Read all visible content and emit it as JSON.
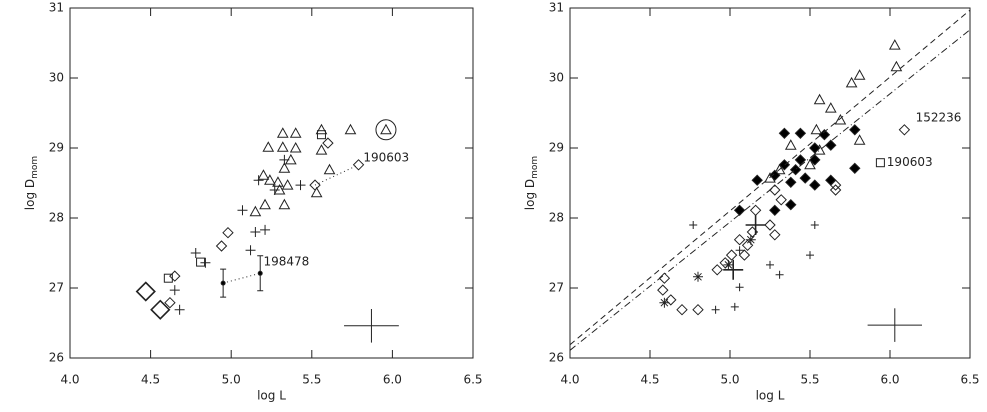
{
  "chart_data": [
    {
      "type": "scatter",
      "x_label": "log L",
      "y_label": "log D",
      "y_label_sub": "mom",
      "xlim": [
        4.0,
        6.5
      ],
      "ylim": [
        26,
        31
      ],
      "xticks": [
        {
          "value": 4.0,
          "label": "4.0"
        },
        4.5,
        {
          "value": 5.0,
          "label": "5.0"
        },
        5.5,
        {
          "value": 6.0,
          "label": "6.0"
        },
        6.5
      ],
      "yticks": [
        26,
        27,
        28,
        29,
        30,
        31
      ],
      "series": [
        {
          "marker": "triangle",
          "size": 5,
          "x": [
            5.32,
            5.4,
            5.23,
            5.32,
            5.4,
            5.2,
            5.24,
            5.29,
            5.33,
            5.37,
            5.3,
            5.35,
            5.21,
            5.33,
            5.15,
            5.56,
            5.74,
            5.61,
            5.53,
            5.56
          ],
          "y": [
            29.21,
            29.21,
            29.01,
            29.01,
            29.0,
            28.61,
            28.54,
            28.51,
            28.71,
            28.83,
            28.4,
            28.47,
            28.19,
            28.19,
            28.09,
            29.26,
            29.26,
            28.69,
            28.36,
            28.97
          ]
        },
        {
          "marker": "plus",
          "size": 5,
          "x": [
            5.07,
            5.15,
            5.21,
            4.78,
            4.84,
            5.12,
            4.65,
            4.68,
            5.17,
            5.27,
            5.43,
            5.33
          ],
          "y": [
            28.11,
            27.8,
            27.83,
            27.5,
            27.36,
            27.54,
            26.97,
            26.69,
            28.54,
            28.4,
            28.47,
            28.83
          ]
        },
        {
          "marker": "diamond",
          "size": 5,
          "x": [
            5.6,
            5.79,
            5.52,
            4.98,
            4.65,
            4.62,
            4.94
          ],
          "y": [
            29.07,
            28.76,
            28.47,
            27.79,
            27.17,
            26.79,
            27.6
          ]
        },
        {
          "marker": "diamond",
          "size": 9,
          "x": [
            4.47,
            4.56
          ],
          "y": [
            26.95,
            26.69
          ]
        },
        {
          "marker": "square",
          "size": 4,
          "x": [
            5.56,
            4.61,
            4.81
          ],
          "y": [
            29.19,
            27.14,
            27.37
          ]
        },
        {
          "marker": "circled-triangle",
          "size": 5,
          "x": [
            5.96
          ],
          "y": [
            29.26
          ]
        },
        {
          "marker": "dot",
          "size": 2,
          "line": "dotted",
          "x": [
            4.95,
            5.18
          ],
          "y": [
            27.07,
            27.21
          ],
          "errors": [
            0.2,
            0.25
          ]
        },
        {
          "marker": "none",
          "size": 0,
          "line": "dotted",
          "x": [
            5.52,
            5.79
          ],
          "y": [
            28.47,
            28.76
          ]
        }
      ],
      "annotations": [
        {
          "text": "190603",
          "x": 5.82,
          "y": 28.86
        },
        {
          "text": "198478",
          "x": 5.2,
          "y": 27.37
        }
      ],
      "error_cross": {
        "x": 5.87,
        "y": 26.46,
        "xerr": 0.17,
        "yerr": 0.24
      }
    },
    {
      "type": "scatter",
      "x_label": "log L",
      "y_label": "log D",
      "y_label_sub": "mom",
      "xlim": [
        4.0,
        6.5
      ],
      "ylim": [
        26,
        31
      ],
      "xticks": [
        {
          "value": 4.0,
          "label": "4.0"
        },
        4.5,
        {
          "value": 5.0,
          "label": "5.0"
        },
        5.5,
        {
          "value": 6.0,
          "label": "6.0"
        },
        6.5
      ],
      "yticks": [
        26,
        27,
        28,
        29,
        30,
        31
      ],
      "series": [
        {
          "marker": "triangle",
          "size": 5,
          "x": [
            6.03,
            6.04,
            5.81,
            5.76,
            5.56,
            5.63,
            5.54,
            5.69,
            5.81,
            5.38,
            5.56,
            5.5,
            5.31,
            5.25
          ],
          "y": [
            30.47,
            30.16,
            30.04,
            29.93,
            29.69,
            29.57,
            29.26,
            29.4,
            29.11,
            29.04,
            28.97,
            28.76,
            28.69,
            28.57
          ]
        },
        {
          "marker": "filled-diamond",
          "size": 5,
          "x": [
            5.34,
            5.44,
            5.59,
            5.78,
            5.53,
            5.63,
            5.44,
            5.34,
            5.53,
            5.41,
            5.47,
            5.38,
            5.17,
            5.28,
            5.53,
            5.63,
            5.78,
            5.38,
            5.28,
            5.06
          ],
          "y": [
            29.21,
            29.21,
            29.19,
            29.26,
            29.0,
            29.04,
            28.83,
            28.76,
            28.83,
            28.69,
            28.57,
            28.51,
            28.54,
            28.61,
            28.47,
            28.54,
            28.71,
            28.19,
            28.11,
            28.11
          ]
        },
        {
          "marker": "diamond",
          "size": 5,
          "x": [
            6.09,
            5.28,
            5.32,
            5.16,
            5.25,
            5.14,
            5.06,
            5.28,
            5.11,
            5.09,
            5.01,
            4.97,
            4.92,
            4.59,
            4.58,
            4.63,
            4.7,
            4.8,
            5.66,
            5.66
          ],
          "y": [
            29.26,
            28.4,
            28.26,
            28.11,
            27.9,
            27.8,
            27.69,
            27.76,
            27.61,
            27.47,
            27.47,
            27.36,
            27.26,
            27.14,
            26.97,
            26.83,
            26.69,
            26.69,
            28.47,
            28.4
          ]
        },
        {
          "marker": "square",
          "size": 4,
          "x": [
            5.94
          ],
          "y": [
            28.79
          ]
        },
        {
          "marker": "plus",
          "size": 4,
          "x": [
            4.77,
            5.06,
            5.25,
            5.31,
            5.5,
            5.53,
            5.06,
            4.91,
            5.03
          ],
          "y": [
            27.9,
            27.54,
            27.33,
            27.19,
            27.47,
            27.9,
            27.01,
            26.69,
            26.73
          ]
        },
        {
          "marker": "asterisk",
          "size": 5,
          "x": [
            4.59,
            4.8,
            4.99,
            5.13
          ],
          "y": [
            26.79,
            27.16,
            27.33,
            27.69
          ]
        },
        {
          "marker": "plus",
          "size": 10,
          "x": [
            5.02,
            5.16
          ],
          "y": [
            27.26,
            27.9
          ]
        },
        {
          "marker": "none",
          "size": 0,
          "line": "dashed",
          "x": [
            4.0,
            6.5
          ],
          "y": [
            26.19,
            30.97
          ]
        },
        {
          "marker": "none",
          "size": 0,
          "line": "dashdot",
          "x": [
            4.0,
            6.5
          ],
          "y": [
            26.11,
            30.69
          ]
        }
      ],
      "annotations": [
        {
          "text": "152236",
          "x": 6.16,
          "y": 29.43
        },
        {
          "text": "190603",
          "x": 5.98,
          "y": 28.79
        }
      ],
      "error_cross": {
        "x": 6.03,
        "y": 26.47,
        "xerr": 0.17,
        "yerr": 0.24
      }
    }
  ]
}
